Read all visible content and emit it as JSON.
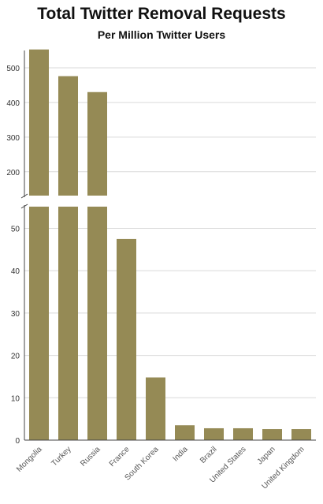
{
  "chart_data": {
    "type": "bar",
    "title": "Total Twitter Removal Requests",
    "subtitle": "Per Million Twitter Users",
    "xlabel": "",
    "ylabel": "",
    "categories": [
      "Mongolia",
      "Turkey",
      "Russia",
      "France",
      "South Korea",
      "India",
      "Brazil",
      "United States",
      "Japan",
      "United Kingdom"
    ],
    "values": [
      553,
      476,
      430,
      47.5,
      14.8,
      3.5,
      2.8,
      2.8,
      2.6,
      2.6
    ],
    "axis_break": {
      "lower_range": [
        0,
        55
      ],
      "upper_range": [
        130,
        560
      ]
    },
    "y_ticks_lower": [
      0,
      10,
      20,
      30,
      40,
      50
    ],
    "y_ticks_upper": [
      200,
      300,
      400,
      500
    ],
    "bar_color": "#958a55",
    "grid": true,
    "legend": "none"
  }
}
